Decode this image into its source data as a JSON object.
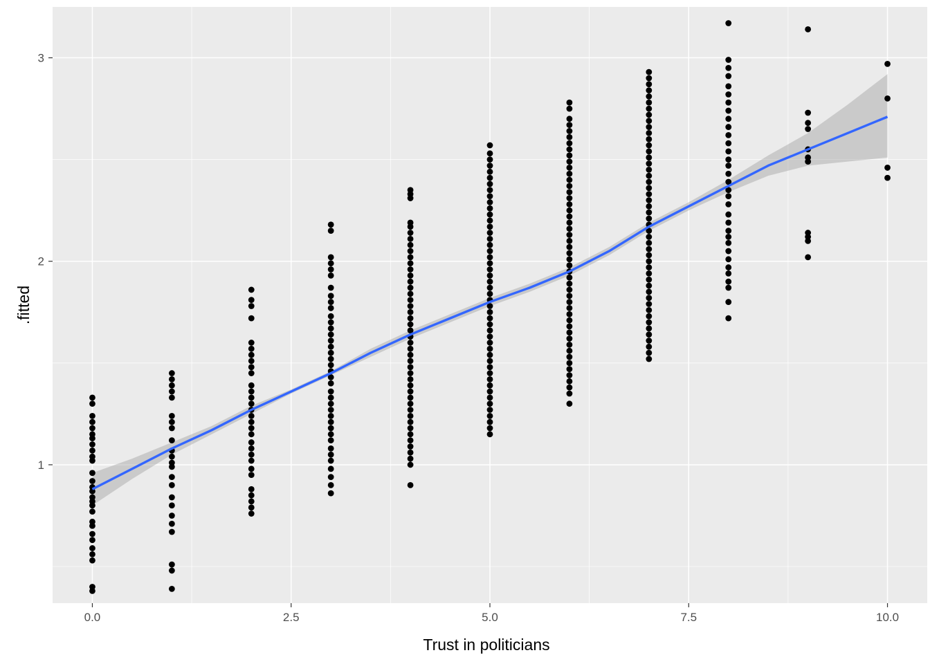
{
  "chart_data": {
    "type": "scatter",
    "title": "",
    "xlabel": "Trust in politicians",
    "ylabel": ".fitted",
    "xlim": [
      -0.5,
      10.5
    ],
    "ylim": [
      0.32,
      3.25
    ],
    "x_ticks": [
      0.0,
      2.5,
      5.0,
      7.5,
      10.0
    ],
    "x_tick_labels": [
      "0.0",
      "2.5",
      "5.0",
      "7.5",
      "10.0"
    ],
    "y_ticks": [
      1,
      2,
      3
    ],
    "y_tick_labels": [
      "1",
      "2",
      "3"
    ],
    "grid": true,
    "legend": "none",
    "colors": {
      "panel": "#ebebeb",
      "grid": "#ffffff",
      "points": "#000000",
      "smooth_line": "#3366ff",
      "ribbon": "#999999"
    },
    "series": [
      {
        "kind": "points",
        "x": 0,
        "y": [
          0.38,
          0.4,
          0.53,
          0.56,
          0.59,
          0.63,
          0.66,
          0.7,
          0.72,
          0.77,
          0.8,
          0.82,
          0.84,
          0.87,
          0.89,
          0.92,
          0.96,
          1.02,
          1.04,
          1.07,
          1.1,
          1.13,
          1.15,
          1.18,
          1.21,
          1.24,
          1.3,
          1.33
        ]
      },
      {
        "kind": "points",
        "x": 1,
        "y": [
          0.39,
          0.48,
          0.51,
          0.67,
          0.71,
          0.75,
          0.8,
          0.84,
          0.9,
          0.94,
          0.99,
          1.01,
          1.04,
          1.07,
          1.12,
          1.18,
          1.21,
          1.24,
          1.33,
          1.36,
          1.39,
          1.42,
          1.45
        ]
      },
      {
        "kind": "points",
        "x": 2,
        "y": [
          0.76,
          0.79,
          0.82,
          0.85,
          0.88,
          0.95,
          0.98,
          1.02,
          1.05,
          1.08,
          1.11,
          1.15,
          1.18,
          1.21,
          1.24,
          1.27,
          1.3,
          1.33,
          1.36,
          1.39,
          1.45,
          1.48,
          1.51,
          1.54,
          1.57,
          1.6,
          1.72,
          1.78,
          1.81,
          1.86
        ]
      },
      {
        "kind": "points",
        "x": 3,
        "y": [
          0.86,
          0.9,
          0.94,
          0.98,
          1.02,
          1.05,
          1.08,
          1.12,
          1.15,
          1.18,
          1.21,
          1.24,
          1.27,
          1.3,
          1.33,
          1.36,
          1.4,
          1.43,
          1.46,
          1.49,
          1.52,
          1.55,
          1.58,
          1.61,
          1.64,
          1.67,
          1.7,
          1.73,
          1.77,
          1.8,
          1.83,
          1.87,
          1.93,
          1.96,
          1.99,
          2.02,
          2.15,
          2.18
        ]
      },
      {
        "kind": "points",
        "x": 4,
        "y": [
          0.9,
          1.0,
          1.03,
          1.06,
          1.09,
          1.12,
          1.15,
          1.18,
          1.21,
          1.24,
          1.27,
          1.3,
          1.33,
          1.36,
          1.39,
          1.42,
          1.45,
          1.48,
          1.51,
          1.54,
          1.57,
          1.6,
          1.63,
          1.66,
          1.69,
          1.72,
          1.75,
          1.78,
          1.81,
          1.84,
          1.87,
          1.9,
          1.93,
          1.96,
          1.99,
          2.02,
          2.05,
          2.08,
          2.11,
          2.14,
          2.17,
          2.19,
          2.31,
          2.33,
          2.35
        ]
      },
      {
        "kind": "points",
        "x": 5,
        "y": [
          1.15,
          1.18,
          1.21,
          1.24,
          1.27,
          1.3,
          1.33,
          1.36,
          1.39,
          1.42,
          1.45,
          1.48,
          1.51,
          1.54,
          1.57,
          1.6,
          1.63,
          1.66,
          1.69,
          1.72,
          1.75,
          1.78,
          1.81,
          1.84,
          1.87,
          1.9,
          1.93,
          1.96,
          1.99,
          2.02,
          2.05,
          2.08,
          2.11,
          2.14,
          2.17,
          2.2,
          2.23,
          2.26,
          2.29,
          2.32,
          2.35,
          2.38,
          2.41,
          2.44,
          2.47,
          2.5,
          2.53,
          2.57
        ]
      },
      {
        "kind": "points",
        "x": 6,
        "y": [
          1.3,
          1.35,
          1.38,
          1.41,
          1.44,
          1.47,
          1.5,
          1.53,
          1.56,
          1.59,
          1.62,
          1.65,
          1.68,
          1.71,
          1.74,
          1.77,
          1.8,
          1.83,
          1.86,
          1.89,
          1.92,
          1.95,
          1.98,
          2.01,
          2.04,
          2.07,
          2.1,
          2.13,
          2.16,
          2.19,
          2.22,
          2.25,
          2.28,
          2.31,
          2.34,
          2.37,
          2.4,
          2.43,
          2.46,
          2.49,
          2.52,
          2.55,
          2.58,
          2.61,
          2.64,
          2.67,
          2.7,
          2.75,
          2.78
        ]
      },
      {
        "kind": "points",
        "x": 7,
        "y": [
          1.52,
          1.55,
          1.58,
          1.61,
          1.64,
          1.67,
          1.7,
          1.73,
          1.76,
          1.79,
          1.82,
          1.85,
          1.88,
          1.91,
          1.94,
          1.97,
          2.0,
          2.03,
          2.06,
          2.09,
          2.12,
          2.15,
          2.18,
          2.21,
          2.24,
          2.27,
          2.3,
          2.33,
          2.36,
          2.39,
          2.42,
          2.45,
          2.48,
          2.51,
          2.54,
          2.57,
          2.6,
          2.63,
          2.66,
          2.69,
          2.72,
          2.75,
          2.78,
          2.81,
          2.84,
          2.87,
          2.9,
          2.93
        ]
      },
      {
        "kind": "points",
        "x": 8,
        "y": [
          1.72,
          1.8,
          1.87,
          1.9,
          1.94,
          1.97,
          2.01,
          2.05,
          2.09,
          2.12,
          2.15,
          2.19,
          2.23,
          2.28,
          2.32,
          2.35,
          2.39,
          2.43,
          2.47,
          2.5,
          2.54,
          2.58,
          2.62,
          2.66,
          2.7,
          2.74,
          2.78,
          2.82,
          2.86,
          2.91,
          2.95,
          2.99,
          3.17
        ]
      },
      {
        "kind": "points",
        "x": 9,
        "y": [
          2.02,
          2.1,
          2.12,
          2.14,
          2.49,
          2.51,
          2.55,
          2.65,
          2.68,
          2.73,
          3.14
        ]
      },
      {
        "kind": "points",
        "x": 10,
        "y": [
          2.41,
          2.46,
          2.8,
          2.97
        ]
      },
      {
        "kind": "smooth",
        "name": "",
        "x": [
          0,
          0.5,
          1,
          1.5,
          2,
          2.5,
          3,
          3.5,
          4,
          4.5,
          5,
          5.5,
          6,
          6.5,
          7,
          7.5,
          8,
          8.5,
          9,
          9.5,
          10
        ],
        "y": [
          0.88,
          0.98,
          1.08,
          1.17,
          1.27,
          1.36,
          1.45,
          1.55,
          1.64,
          1.72,
          1.8,
          1.87,
          1.95,
          2.05,
          2.17,
          2.27,
          2.37,
          2.47,
          2.55,
          2.63,
          2.71
        ],
        "lower": [
          0.8,
          0.93,
          1.05,
          1.15,
          1.25,
          1.35,
          1.44,
          1.53,
          1.62,
          1.7,
          1.78,
          1.85,
          1.93,
          2.03,
          2.15,
          2.25,
          2.34,
          2.42,
          2.47,
          2.49,
          2.51
        ],
        "upper": [
          0.96,
          1.03,
          1.11,
          1.19,
          1.29,
          1.37,
          1.46,
          1.57,
          1.66,
          1.74,
          1.82,
          1.89,
          1.97,
          2.07,
          2.19,
          2.29,
          2.4,
          2.52,
          2.63,
          2.77,
          2.92
        ]
      }
    ]
  }
}
